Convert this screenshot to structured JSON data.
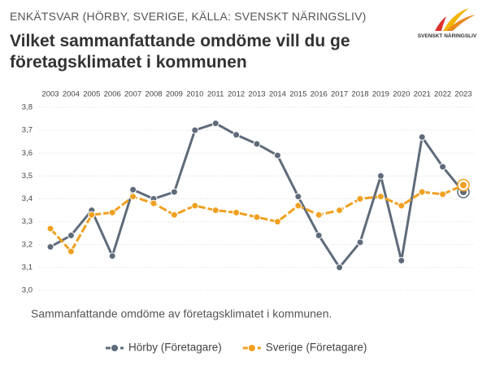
{
  "header": "ENKÄTSVAR (HÖRBY, SVERIGE, KÄLLA: SVENSKT NÄRINGSLIV)",
  "logo": "SVENSKT NÄRINGSLIV",
  "chart_data": {
    "type": "line",
    "title": "Vilket sammanfattande omdöme vill du ge företagsklimatet i kommunen",
    "caption": "Sammanfattande omdöme av företagsklimatet i kommunen.",
    "categories": [
      "2003",
      "2004",
      "2005",
      "2006",
      "2007",
      "2008",
      "2009",
      "2010",
      "2011",
      "2012",
      "2013",
      "2014",
      "2015",
      "2016",
      "2017",
      "2018",
      "2019",
      "2020",
      "2021",
      "2022",
      "2023"
    ],
    "series": [
      {
        "name": "Hörby (Företagare)",
        "color": "#5f6b7a",
        "values": [
          3.19,
          3.24,
          3.35,
          3.15,
          3.44,
          3.4,
          3.43,
          3.7,
          3.73,
          3.68,
          3.64,
          3.59,
          3.41,
          3.24,
          3.1,
          3.21,
          3.5,
          3.13,
          3.67,
          3.54,
          3.43
        ]
      },
      {
        "name": "Sverige (Företagare)",
        "color": "#f0a020",
        "values": [
          3.27,
          3.17,
          3.33,
          3.34,
          3.41,
          3.38,
          3.33,
          3.37,
          3.35,
          3.34,
          3.32,
          3.3,
          3.37,
          3.33,
          3.35,
          3.4,
          3.41,
          3.37,
          3.43,
          3.42,
          3.46
        ]
      }
    ],
    "ylim": [
      3.0,
      3.8
    ],
    "yticks": [
      {
        "value": 3.0,
        "label": "3,0"
      },
      {
        "value": 3.1,
        "label": "3,1"
      },
      {
        "value": 3.2,
        "label": "3,2"
      },
      {
        "value": 3.3,
        "label": "3,3"
      },
      {
        "value": 3.4,
        "label": "3,4"
      },
      {
        "value": 3.5,
        "label": "3,5"
      },
      {
        "value": 3.6,
        "label": "3,6"
      },
      {
        "value": 3.7,
        "label": "3,7"
      },
      {
        "value": 3.8,
        "label": "3,8"
      }
    ],
    "grid": true
  }
}
